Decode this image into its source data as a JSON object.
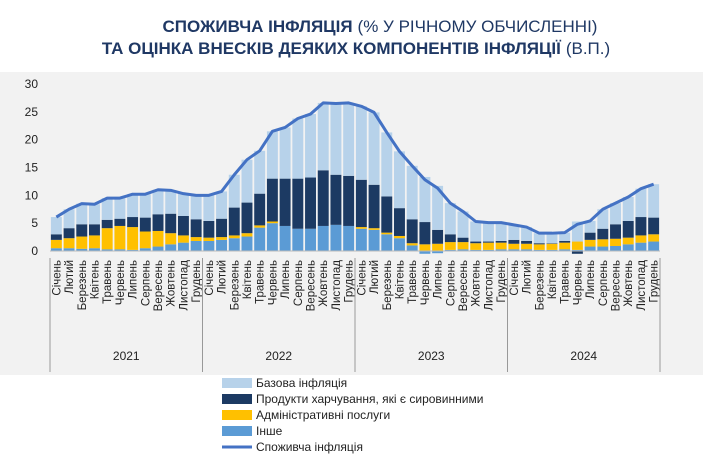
{
  "chart_data": {
    "type": "stacked_bar_line",
    "title_lines": [
      [
        "СПОЖИВЧА ІНФЛЯЦІЯ",
        "(% У РІЧНОМУ ОБЧИСЛЕННІ)"
      ],
      [
        "ТА ОЦІНКА ВНЕСКІВ ДЕЯКИХ КОМПОНЕНТІВ ІНФЛЯЦІЇ",
        "(В.П.)"
      ]
    ],
    "categories": [
      "Січень",
      "Лютий",
      "Березень",
      "Квітень",
      "Травень",
      "Червень",
      "Липень",
      "Серпень",
      "Вересень",
      "Жовтень",
      "Листопад",
      "Грудень",
      "Січень",
      "Лютий",
      "Березень",
      "Квітень",
      "Травень",
      "Червень",
      "Липень",
      "Серпень",
      "Вересень",
      "Жовтень",
      "Листопад",
      "Грудень",
      "Січень",
      "Лютий",
      "Березень",
      "Квітень",
      "Травень",
      "Червень",
      "Липень",
      "Серпень",
      "Вересень",
      "Жовтень",
      "Листопад",
      "Грудень",
      "Січень",
      "Лютий",
      "Березень",
      "Квітень",
      "Травень",
      "Червень",
      "Липень",
      "Серпень",
      "Вересень",
      "Жовтень",
      "Листопад",
      "Грудень"
    ],
    "years": [
      "2021",
      "2022",
      "2023",
      "2024"
    ],
    "series": [
      {
        "name": "Базова інфляція",
        "color": "#b7d2ea",
        "values": [
          3.1,
          3.4,
          3.7,
          3.6,
          3.9,
          3.7,
          4.1,
          4.2,
          4.4,
          4.2,
          4.0,
          4.3,
          4.6,
          4.9,
          5.9,
          7.7,
          7.7,
          8.5,
          9.2,
          10.8,
          11.4,
          12.1,
          12.8,
          13.1,
          13.2,
          13.0,
          11.5,
          10.2,
          9.6,
          8.1,
          7.9,
          5.6,
          4.7,
          3.6,
          3.4,
          3.3,
          2.7,
          2.5,
          1.8,
          1.8,
          1.5,
          3.6,
          2.1,
          3.5,
          3.8,
          4.3,
          5.1,
          6.0
        ]
      },
      {
        "name": "Продукти харчування, які є сировинними",
        "color": "#1c3a63",
        "values": [
          1.0,
          1.8,
          2.2,
          2.0,
          1.5,
          1.3,
          1.8,
          2.5,
          3.0,
          3.5,
          3.5,
          3.2,
          3.0,
          3.3,
          5.0,
          5.5,
          5.7,
          7.7,
          8.5,
          9.0,
          9.2,
          10.0,
          9.0,
          9.0,
          8.5,
          7.8,
          6.5,
          5.0,
          4.3,
          4.0,
          2.5,
          1.4,
          0.8,
          0.3,
          0.2,
          0.3,
          0.7,
          0.5,
          0.2,
          0.1,
          0.3,
          -0.5,
          1.3,
          1.9,
          2.6,
          3.0,
          3.3,
          3.0
        ]
      },
      {
        "name": "Адміністративні послуги",
        "color": "#ffc000",
        "values": [
          1.5,
          1.8,
          2.2,
          2.3,
          3.8,
          4.2,
          4.1,
          3.0,
          2.8,
          2.0,
          1.3,
          0.7,
          0.6,
          0.5,
          0.5,
          0.6,
          0.4,
          0.3,
          0,
          0,
          0,
          0,
          0,
          0,
          0.3,
          0.3,
          0.3,
          0.4,
          0.4,
          1.2,
          1.3,
          1.4,
          1.3,
          1.2,
          1.3,
          1.2,
          1.0,
          1.0,
          1.0,
          1.1,
          1.2,
          1.5,
          1.2,
          1.3,
          1.3,
          1.2,
          1.3,
          1.3
        ]
      },
      {
        "name": "Інше",
        "color": "#5b9bd5",
        "values": [
          0.5,
          0.5,
          0.4,
          0.5,
          0.3,
          0.3,
          0.2,
          0.5,
          0.8,
          1.2,
          1.5,
          1.8,
          1.8,
          2.0,
          2.3,
          2.6,
          4.2,
          5.0,
          4.5,
          4.0,
          4.0,
          4.5,
          4.7,
          4.5,
          4.0,
          3.8,
          3.0,
          2.3,
          1.0,
          -0.5,
          -0.4,
          0.2,
          0.3,
          0.2,
          0.2,
          0.3,
          0.3,
          0.3,
          0.2,
          0.2,
          0.3,
          0.2,
          0.8,
          0.8,
          0.9,
          1.2,
          1.5,
          1.7
        ]
      }
    ],
    "line": {
      "name": "Споживча інфляція",
      "color": "#4472c4",
      "values": [
        6.1,
        7.5,
        8.5,
        8.4,
        9.5,
        9.5,
        10.2,
        10.2,
        11.0,
        10.9,
        10.3,
        10.0,
        10.0,
        10.7,
        13.7,
        16.4,
        18.0,
        21.5,
        22.2,
        23.8,
        24.6,
        26.6,
        26.5,
        26.6,
        26.0,
        24.9,
        21.3,
        17.9,
        15.3,
        12.8,
        11.3,
        8.6,
        7.1,
        5.3,
        5.1,
        5.1,
        4.7,
        4.3,
        3.2,
        3.2,
        3.3,
        4.8,
        5.4,
        7.5,
        8.6,
        9.7,
        11.2,
        12.0
      ]
    },
    "ylim": [
      -1,
      30
    ],
    "yticks": [
      0,
      5,
      10,
      15,
      20,
      25,
      30
    ]
  }
}
